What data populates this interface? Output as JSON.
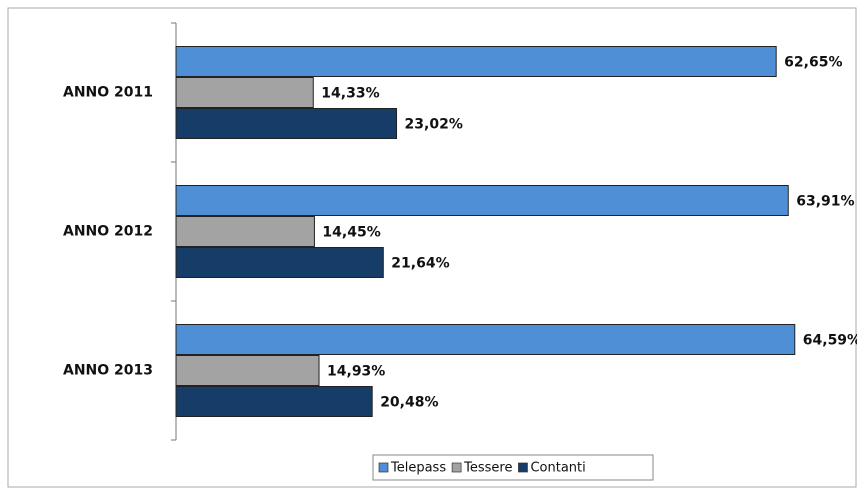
{
  "chart_data": {
    "type": "bar",
    "orientation": "horizontal",
    "categories": [
      "ANNO 2011",
      "ANNO 2012",
      "ANNO 2013"
    ],
    "series": [
      {
        "name": "Telepass",
        "color": "#4f8fd6",
        "values": [
          62.65,
          63.91,
          64.59
        ],
        "value_labels": [
          "62,65%",
          "63,91%",
          "64,59%"
        ]
      },
      {
        "name": "Tessere",
        "color": "#a3a3a3",
        "values": [
          14.33,
          14.45,
          14.93
        ],
        "value_labels": [
          "14,33%",
          "14,45%",
          "14,93%"
        ]
      },
      {
        "name": "Contanti",
        "color": "#163c68",
        "values": [
          23.02,
          21.64,
          20.48
        ],
        "value_labels": [
          "23,02%",
          "21,64%",
          "20,48%"
        ]
      }
    ],
    "legend": "bottom"
  }
}
